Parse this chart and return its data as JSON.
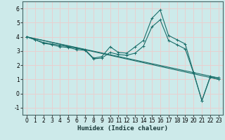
{
  "title": "",
  "xlabel": "Humidex (Indice chaleur)",
  "background_color": "#cdeaea",
  "grid_color": "#e8d0d0",
  "line_color": "#1a6e6a",
  "xlim": [
    -0.5,
    23.5
  ],
  "ylim": [
    -1.5,
    6.5
  ],
  "yticks": [
    -1,
    0,
    1,
    2,
    3,
    4,
    5,
    6
  ],
  "xticks": [
    0,
    1,
    2,
    3,
    4,
    5,
    6,
    7,
    8,
    9,
    10,
    11,
    12,
    13,
    14,
    15,
    16,
    17,
    18,
    19,
    20,
    21,
    22,
    23
  ],
  "lines": [
    {
      "x": [
        0,
        1,
        2,
        3,
        4,
        5,
        6,
        7,
        8,
        9,
        10,
        11,
        12,
        13,
        14,
        15,
        16,
        17,
        18,
        19,
        20,
        21,
        22,
        23
      ],
      "y": [
        4.0,
        3.8,
        3.6,
        3.5,
        3.4,
        3.3,
        3.2,
        3.1,
        2.5,
        2.6,
        3.3,
        2.9,
        2.85,
        3.3,
        3.75,
        5.3,
        5.9,
        4.1,
        3.8,
        3.5,
        1.5,
        -0.5,
        1.2,
        1.1
      ]
    },
    {
      "x": [
        0,
        1,
        2,
        3,
        4,
        5,
        6,
        7,
        8,
        9,
        10,
        11,
        12,
        13,
        14,
        15,
        16,
        17,
        18,
        19,
        20,
        21,
        22,
        23
      ],
      "y": [
        4.0,
        3.8,
        3.55,
        3.45,
        3.3,
        3.25,
        3.1,
        3.05,
        2.45,
        2.5,
        2.9,
        2.75,
        2.7,
        2.85,
        3.35,
        4.7,
        5.2,
        3.75,
        3.45,
        3.15,
        1.45,
        -0.5,
        1.15,
        1.0
      ]
    },
    {
      "x": [
        0,
        23
      ],
      "y": [
        4.0,
        1.1
      ]
    },
    {
      "x": [
        0,
        23
      ],
      "y": [
        4.0,
        1.0
      ]
    }
  ]
}
